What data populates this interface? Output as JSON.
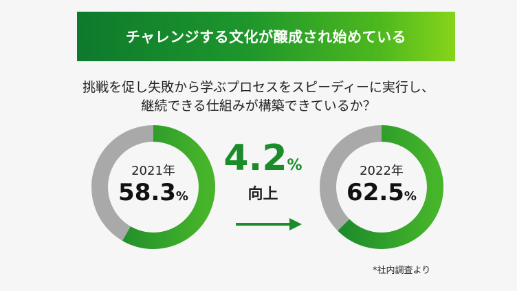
{
  "banner": {
    "title": "チャレンジする文化が醸成され始めている"
  },
  "question": {
    "line1": "挑戦を促し失敗から学ぶプロセスをスピーディーに実行し、",
    "line2": "継続できる仕組みが構築できているか？"
  },
  "chart_data": {
    "type": "pie",
    "style": "donut",
    "categories": [
      "2021年",
      "2022年"
    ],
    "series": [
      {
        "category": "2021年",
        "value": 58.3,
        "display": "58.3",
        "unit": "%"
      },
      {
        "category": "2022年",
        "value": 62.5,
        "display": "62.5",
        "unit": "%"
      }
    ],
    "change": {
      "display": "4.2",
      "value": 4.2,
      "unit": "%",
      "label": "向上"
    }
  },
  "colors": {
    "accent_green": "#1a8c2a",
    "ring_gray": "#a9a9a9"
  },
  "footnote": "*社内調査より"
}
